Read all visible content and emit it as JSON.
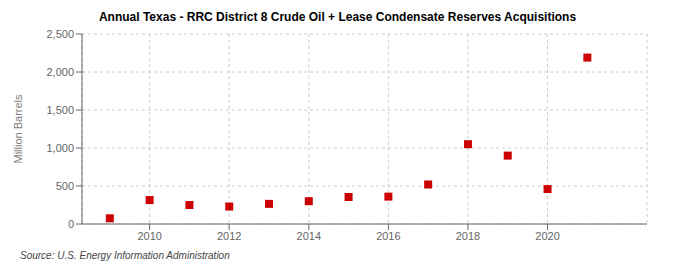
{
  "chart_data": {
    "type": "scatter",
    "title": "Annual Texas - RRC District 8 Crude Oil + Lease Condensate Reserves Acquisitions",
    "ylabel": "Million Barrels",
    "annotation": "Source: U.S. Energy Information Administration",
    "x": [
      2009,
      2010,
      2011,
      2012,
      2013,
      2014,
      2015,
      2016,
      2017,
      2018,
      2019,
      2020,
      2021
    ],
    "values": [
      75,
      315,
      250,
      230,
      265,
      300,
      355,
      360,
      520,
      1050,
      900,
      460,
      2190
    ],
    "color": "#cc0000",
    "marker": "square",
    "xlim": [
      2008.3,
      2022.5
    ],
    "xticks": [
      2010,
      2012,
      2014,
      2016,
      2018,
      2020
    ],
    "ylim": [
      0,
      2500
    ],
    "yticks": [
      0,
      500,
      {
        "value": 1000,
        "label": "1,000"
      },
      {
        "value": 1500,
        "label": "1,500"
      },
      {
        "value": 2000,
        "label": "2,000"
      },
      {
        "value": 2500,
        "label": "2,500"
      }
    ],
    "grid": true
  }
}
